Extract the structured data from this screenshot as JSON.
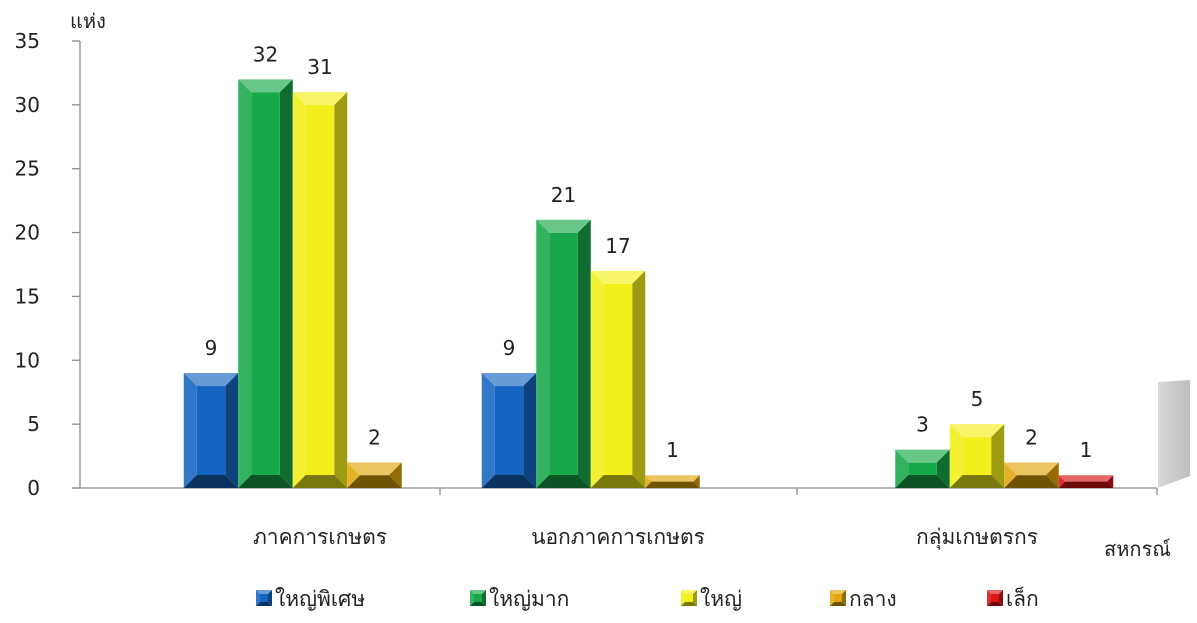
{
  "chart_data": {
    "type": "bar",
    "ylabel": "แห่ง",
    "xlabel": "สหกรณ์",
    "ylim": [
      0,
      35
    ],
    "yticks": [
      0,
      5,
      10,
      15,
      20,
      25,
      30,
      35
    ],
    "categories": [
      "ภาคการเกษตร",
      "นอกภาคการเกษตร",
      "กลุ่มเกษตรกร"
    ],
    "series": [
      {
        "name": "ใหญ่พิเศษ",
        "color": "#1565c0",
        "values": [
          9,
          9,
          null
        ]
      },
      {
        "name": "ใหญ่มาก",
        "color": "#17a84a",
        "values": [
          32,
          21,
          3
        ]
      },
      {
        "name": "ใหญ่",
        "color": "#f2ef1a",
        "values": [
          31,
          17,
          5
        ]
      },
      {
        "name": "กลาง",
        "color": "#e2a60c",
        "values": [
          2,
          1,
          2
        ]
      },
      {
        "name": "เล็ก",
        "color": "#d81414",
        "values": [
          null,
          null,
          1
        ]
      }
    ],
    "legend_position": "bottom",
    "grid": false
  }
}
